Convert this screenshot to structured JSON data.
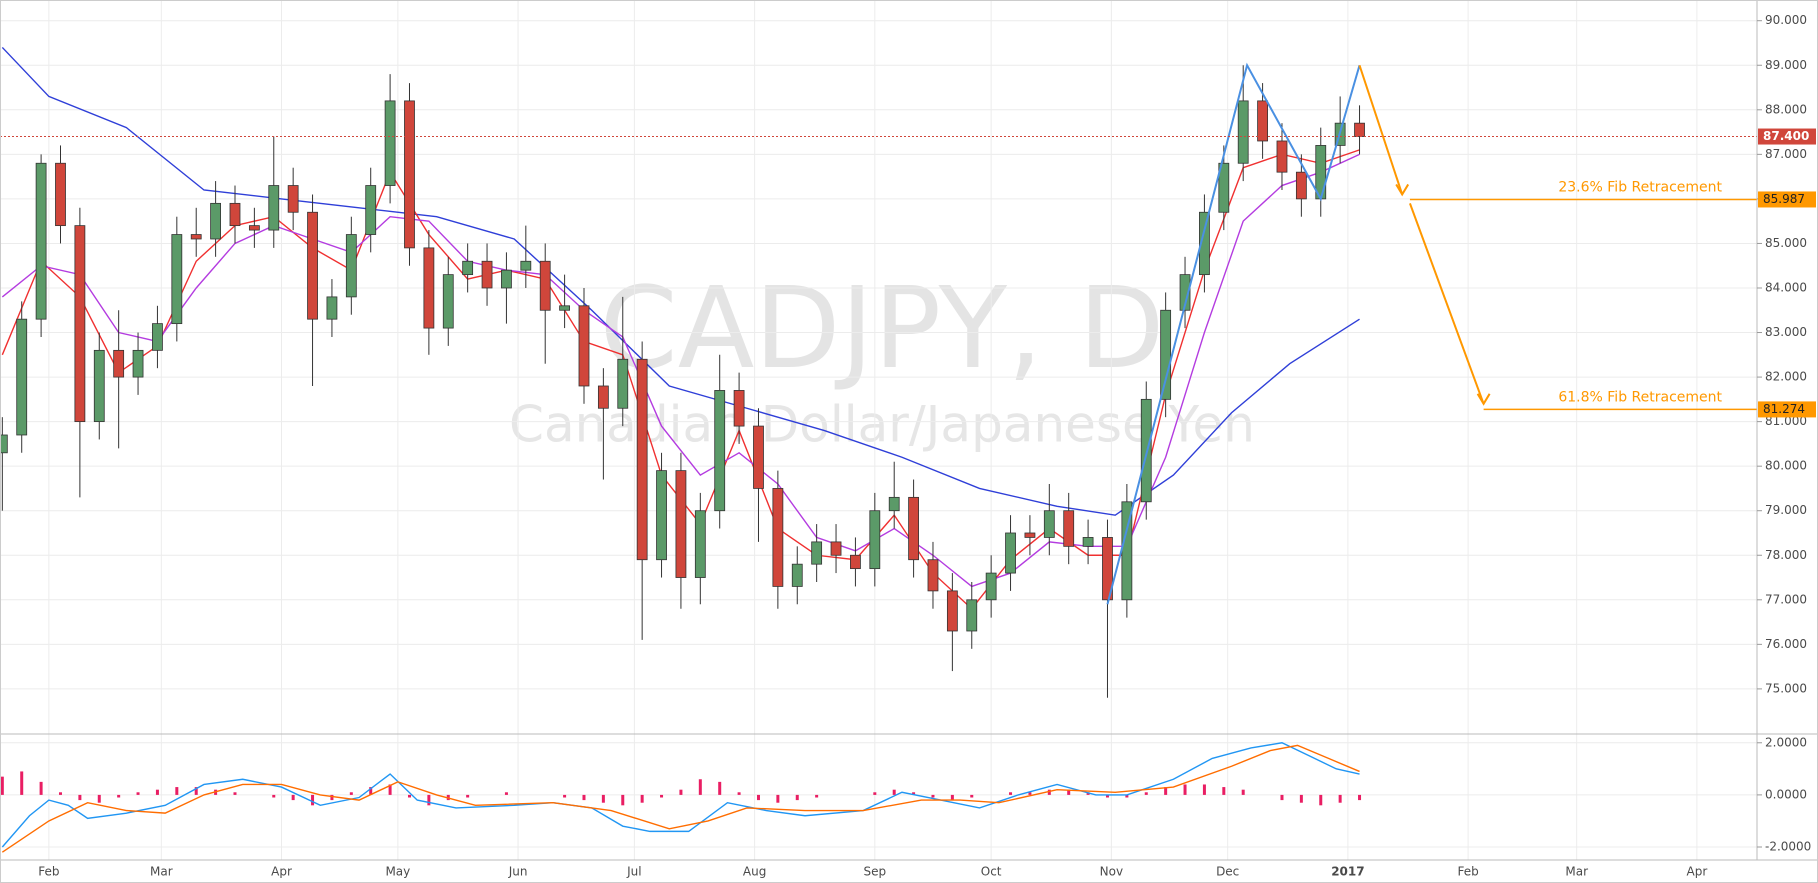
{
  "chart_data": [
    {
      "type": "candlestick",
      "title": "CADJPY, D",
      "subtitle": "Canadian Dollar/Japanese Yen",
      "xlim": [
        -12.6,
        440.5
      ],
      "ylim": [
        74.01,
        90.42
      ],
      "grid": true,
      "xticks": [
        {
          "value": 0,
          "label": "Feb"
        },
        {
          "value": 29,
          "label": "Mar"
        },
        {
          "value": 60,
          "label": "Apr"
        },
        {
          "value": 90,
          "label": "May"
        },
        {
          "value": 121,
          "label": "Jun"
        },
        {
          "value": 151,
          "label": "Jul"
        },
        {
          "value": 182,
          "label": "Aug"
        },
        {
          "value": 213,
          "label": "Sep"
        },
        {
          "value": 243,
          "label": "Oct"
        },
        {
          "value": 274,
          "label": "Nov"
        },
        {
          "value": 304,
          "label": "Dec"
        },
        {
          "value": 335,
          "label": "2017",
          "bold": true
        },
        {
          "value": 366,
          "label": "Feb"
        },
        {
          "value": 394,
          "label": "Mar"
        },
        {
          "value": 425,
          "label": "Apr"
        }
      ],
      "yticks": [
        {
          "value": 75,
          "label": "75.000"
        },
        {
          "value": 76,
          "label": "76.000"
        },
        {
          "value": 77,
          "label": "77.000"
        },
        {
          "value": 78,
          "label": "78.000"
        },
        {
          "value": 79,
          "label": "79.000"
        },
        {
          "value": 80,
          "label": "80.000"
        },
        {
          "value": 81,
          "label": "81.000"
        },
        {
          "value": 82,
          "label": "82.000"
        },
        {
          "value": 83,
          "label": "83.000"
        },
        {
          "value": 84,
          "label": "84.000"
        },
        {
          "value": 85,
          "label": "85.000"
        },
        {
          "value": 86,
          "label": "86.000"
        },
        {
          "value": 87,
          "label": "87.000"
        },
        {
          "value": 88,
          "label": "88.000"
        },
        {
          "value": 89,
          "label": "89.000"
        },
        {
          "value": 90,
          "label": "90.000"
        }
      ],
      "up_color": "#5b9a68",
      "down_color": "#d0463b",
      "x": [
        -12,
        -7,
        -2,
        3,
        8,
        13,
        18,
        23,
        28,
        33,
        38,
        43,
        48,
        53,
        58,
        63,
        68,
        73,
        78,
        83,
        88,
        93,
        98,
        103,
        108,
        113,
        118,
        123,
        128,
        133,
        138,
        143,
        148,
        153,
        158,
        163,
        168,
        173,
        178,
        183,
        188,
        193,
        198,
        203,
        208,
        213,
        218,
        223,
        228,
        233,
        238,
        243,
        248,
        253,
        258,
        263,
        268,
        273,
        278,
        283,
        288,
        293,
        298,
        303,
        308,
        313,
        318,
        323,
        328,
        333,
        338
      ],
      "open": [
        80.3,
        80.7,
        83.3,
        86.8,
        85.4,
        81.0,
        82.6,
        82.0,
        82.6,
        83.2,
        85.2,
        85.1,
        85.9,
        85.4,
        85.3,
        86.3,
        85.7,
        83.3,
        83.8,
        85.2,
        86.3,
        88.2,
        84.9,
        83.1,
        84.3,
        84.6,
        84.0,
        84.4,
        84.6,
        83.5,
        83.6,
        81.8,
        81.3,
        82.4,
        77.9,
        79.9,
        77.5,
        79.0,
        81.7,
        80.9,
        79.5,
        77.3,
        77.8,
        78.3,
        78.0,
        77.7,
        79.0,
        79.3,
        77.9,
        77.2,
        76.3,
        77.0,
        77.6,
        78.5,
        78.4,
        79.0,
        78.2,
        78.4,
        77.0,
        79.2,
        81.5,
        83.5,
        84.3,
        85.7,
        86.8,
        88.2,
        87.3,
        86.6,
        86.0,
        87.2,
        87.7
      ],
      "high": [
        81.1,
        83.7,
        87.0,
        87.2,
        85.8,
        83.0,
        83.5,
        83.0,
        83.6,
        85.6,
        85.8,
        86.4,
        86.3,
        85.8,
        87.4,
        86.7,
        86.1,
        84.2,
        85.6,
        86.7,
        88.8,
        88.6,
        85.3,
        84.7,
        85.0,
        85.0,
        84.8,
        85.4,
        85.0,
        84.3,
        84.0,
        82.2,
        83.8,
        82.8,
        80.3,
        80.3,
        79.4,
        82.5,
        82.1,
        81.3,
        79.9,
        78.2,
        78.7,
        78.7,
        78.4,
        79.4,
        80.1,
        79.7,
        78.3,
        77.6,
        77.4,
        78.0,
        78.9,
        78.9,
        79.6,
        79.4,
        78.8,
        78.8,
        79.6,
        81.9,
        83.9,
        84.7,
        86.1,
        87.2,
        89.0,
        88.6,
        87.7,
        87.0,
        87.6,
        88.3,
        88.1
      ],
      "low": [
        79.0,
        80.3,
        82.9,
        85.0,
        79.3,
        80.6,
        80.4,
        81.6,
        82.2,
        82.8,
        84.7,
        84.7,
        85.0,
        84.9,
        84.9,
        85.3,
        81.8,
        82.9,
        83.4,
        84.8,
        85.9,
        84.5,
        82.5,
        82.7,
        83.9,
        83.6,
        83.2,
        84.0,
        82.3,
        83.1,
        81.4,
        79.7,
        80.9,
        76.1,
        77.5,
        76.8,
        76.9,
        78.6,
        80.5,
        78.3,
        76.8,
        76.9,
        77.4,
        77.6,
        77.3,
        77.3,
        78.6,
        77.5,
        76.8,
        75.4,
        75.9,
        76.6,
        77.2,
        78.0,
        78.0,
        77.8,
        77.8,
        74.8,
        76.6,
        78.8,
        81.1,
        83.1,
        83.9,
        85.3,
        86.4,
        86.9,
        86.2,
        85.6,
        85.6,
        86.8,
        87.0
      ],
      "close": [
        80.7,
        83.3,
        86.8,
        85.4,
        81.0,
        82.6,
        82.0,
        82.6,
        83.2,
        85.2,
        85.1,
        85.9,
        85.4,
        85.3,
        86.3,
        85.7,
        83.3,
        83.8,
        85.2,
        86.3,
        88.2,
        84.9,
        83.1,
        84.3,
        84.6,
        84.0,
        84.4,
        84.6,
        83.5,
        83.6,
        81.8,
        81.3,
        82.4,
        77.9,
        79.9,
        77.5,
        79.0,
        81.7,
        80.9,
        79.5,
        77.3,
        77.8,
        78.3,
        78.0,
        77.7,
        79.0,
        79.3,
        77.9,
        77.2,
        76.3,
        77.0,
        77.6,
        78.5,
        78.4,
        79.0,
        78.2,
        78.4,
        77.0,
        79.2,
        81.5,
        83.5,
        84.3,
        85.7,
        86.8,
        88.2,
        87.3,
        86.6,
        86.0,
        87.2,
        87.7,
        87.4
      ],
      "lines": [
        {
          "color": "#2f3fd8",
          "x": [
            -12,
            0,
            20,
            40,
            60,
            80,
            100,
            120,
            140,
            160,
            180,
            200,
            220,
            240,
            260,
            275,
            290,
            305,
            320,
            338
          ],
          "values": [
            89.4,
            88.3,
            87.6,
            86.2,
            86.0,
            85.8,
            85.6,
            85.1,
            83.5,
            81.8,
            81.3,
            80.8,
            80.2,
            79.5,
            79.1,
            78.9,
            79.8,
            81.2,
            82.3,
            83.3
          ]
        },
        {
          "color": "#f03030",
          "x": [
            -12,
            -2,
            8,
            18,
            28,
            38,
            48,
            58,
            68,
            78,
            88,
            98,
            108,
            118,
            128,
            138,
            148,
            158,
            168,
            178,
            188,
            198,
            208,
            218,
            228,
            238,
            248,
            258,
            268,
            278,
            288,
            298,
            308,
            318,
            328,
            338
          ],
          "values": [
            82.5,
            84.6,
            83.8,
            82.1,
            82.7,
            84.6,
            85.4,
            85.6,
            84.9,
            84.4,
            86.6,
            85.2,
            84.2,
            84.4,
            84.2,
            82.8,
            82.5,
            79.8,
            78.7,
            80.8,
            78.6,
            78.0,
            77.9,
            78.9,
            77.6,
            76.8,
            77.9,
            78.6,
            78.0,
            78.0,
            81.6,
            84.4,
            86.7,
            87.0,
            86.8,
            87.1
          ]
        },
        {
          "color": "#b43ce0",
          "x": [
            -12,
            -2,
            8,
            18,
            28,
            38,
            48,
            58,
            68,
            78,
            88,
            98,
            108,
            118,
            128,
            138,
            148,
            158,
            168,
            178,
            188,
            198,
            208,
            218,
            228,
            238,
            248,
            258,
            268,
            278,
            288,
            298,
            308,
            318,
            328,
            338
          ],
          "values": [
            83.8,
            84.5,
            84.3,
            83.0,
            82.8,
            84.0,
            85.0,
            85.4,
            85.1,
            84.8,
            85.6,
            85.5,
            84.6,
            84.4,
            84.3,
            83.5,
            82.9,
            80.9,
            79.8,
            80.3,
            79.6,
            78.4,
            78.1,
            78.6,
            78.0,
            77.3,
            77.6,
            78.3,
            78.2,
            78.2,
            80.2,
            83.0,
            85.5,
            86.3,
            86.6,
            87.0
          ]
        }
      ],
      "drawings": [
        {
          "color": "#4a90e2",
          "x": [
            273,
            309,
            328,
            338
          ],
          "values": [
            76.9,
            89.0,
            86.0,
            89.0
          ]
        },
        {
          "color": "#ff9800",
          "x": [
            338,
            349
          ],
          "values": [
            89.0,
            86.1
          ]
        },
        {
          "color": "#ff9800",
          "x": [
            351,
            370
          ],
          "values": [
            85.9,
            81.4
          ]
        }
      ],
      "last_price": {
        "value": 87.4,
        "label": "87.400",
        "color": "#d0463b"
      },
      "fib_levels": [
        {
          "value": 85.987,
          "label": "85.987",
          "text": "23.6% Fib Retracement",
          "start": 351,
          "color": "#ff9800"
        },
        {
          "value": 81.274,
          "label": "81.274",
          "text": "61.8% Fib Retracement",
          "start": 370,
          "color": "#ff9800"
        }
      ]
    },
    {
      "type": "macd",
      "xlim": [
        -12.6,
        440.5
      ],
      "ylim": [
        -2.46,
        2.26
      ],
      "grid": true,
      "yticks": [
        {
          "value": -2,
          "label": "-2.0000"
        },
        {
          "value": 0,
          "label": "0.0000"
        },
        {
          "value": 2,
          "label": "2.0000"
        }
      ],
      "histogram": {
        "color": "#e91e63",
        "x": [
          -12,
          -7,
          -2,
          3,
          8,
          13,
          18,
          23,
          28,
          33,
          38,
          43,
          48,
          53,
          58,
          63,
          68,
          73,
          78,
          83,
          88,
          93,
          98,
          103,
          108,
          113,
          118,
          123,
          128,
          133,
          138,
          143,
          148,
          153,
          158,
          163,
          168,
          173,
          178,
          183,
          188,
          193,
          198,
          203,
          208,
          213,
          218,
          223,
          228,
          233,
          238,
          243,
          248,
          253,
          258,
          263,
          268,
          273,
          278,
          283,
          288,
          293,
          298,
          303,
          308,
          313,
          318,
          323,
          328,
          333,
          338
        ],
        "values": [
          0.7,
          0.9,
          0.5,
          0.1,
          -0.2,
          -0.3,
          -0.1,
          0.1,
          0.2,
          0.3,
          0.3,
          0.2,
          0.1,
          0.0,
          -0.1,
          -0.2,
          -0.4,
          -0.2,
          0.1,
          0.3,
          0.4,
          -0.1,
          -0.4,
          -0.2,
          -0.1,
          0.0,
          0.1,
          0.0,
          0.0,
          -0.1,
          -0.2,
          -0.3,
          -0.4,
          -0.3,
          -0.1,
          0.2,
          0.6,
          0.5,
          0.1,
          -0.2,
          -0.3,
          -0.2,
          -0.1,
          0.0,
          0.0,
          0.1,
          0.2,
          0.1,
          -0.1,
          -0.2,
          -0.1,
          0.0,
          0.1,
          0.1,
          0.2,
          0.2,
          0.1,
          -0.1,
          -0.1,
          0.1,
          0.3,
          0.4,
          0.4,
          0.3,
          0.2,
          0.0,
          -0.2,
          -0.3,
          -0.4,
          -0.3,
          -0.2
        ]
      },
      "lines": [
        {
          "color": "#2196f3",
          "x": [
            -12,
            -5,
            0,
            5,
            10,
            20,
            30,
            40,
            50,
            60,
            70,
            80,
            88,
            95,
            105,
            120,
            130,
            140,
            148,
            155,
            165,
            175,
            185,
            195,
            210,
            220,
            230,
            240,
            250,
            260,
            270,
            278,
            290,
            300,
            310,
            318,
            325,
            332,
            338
          ],
          "values": [
            -2.0,
            -0.8,
            -0.2,
            -0.4,
            -0.9,
            -0.7,
            -0.4,
            0.4,
            0.6,
            0.3,
            -0.4,
            -0.1,
            0.8,
            -0.2,
            -0.5,
            -0.4,
            -0.3,
            -0.5,
            -1.2,
            -1.4,
            -1.4,
            -0.3,
            -0.6,
            -0.8,
            -0.6,
            0.1,
            -0.2,
            -0.5,
            0.0,
            0.4,
            0.0,
            0.0,
            0.6,
            1.4,
            1.8,
            2.0,
            1.5,
            1.0,
            0.8
          ]
        },
        {
          "color": "#ff6d00",
          "x": [
            -12,
            0,
            10,
            20,
            30,
            40,
            50,
            60,
            70,
            80,
            90,
            100,
            110,
            130,
            145,
            160,
            170,
            180,
            195,
            210,
            225,
            235,
            245,
            260,
            275,
            290,
            305,
            315,
            322,
            330,
            338
          ],
          "values": [
            -2.2,
            -1.0,
            -0.3,
            -0.6,
            -0.7,
            0.0,
            0.4,
            0.4,
            0.0,
            -0.2,
            0.5,
            0.0,
            -0.4,
            -0.3,
            -0.6,
            -1.3,
            -1.0,
            -0.5,
            -0.6,
            -0.6,
            -0.2,
            -0.2,
            -0.3,
            0.2,
            0.1,
            0.3,
            1.1,
            1.7,
            1.9,
            1.4,
            0.9
          ]
        }
      ]
    }
  ]
}
